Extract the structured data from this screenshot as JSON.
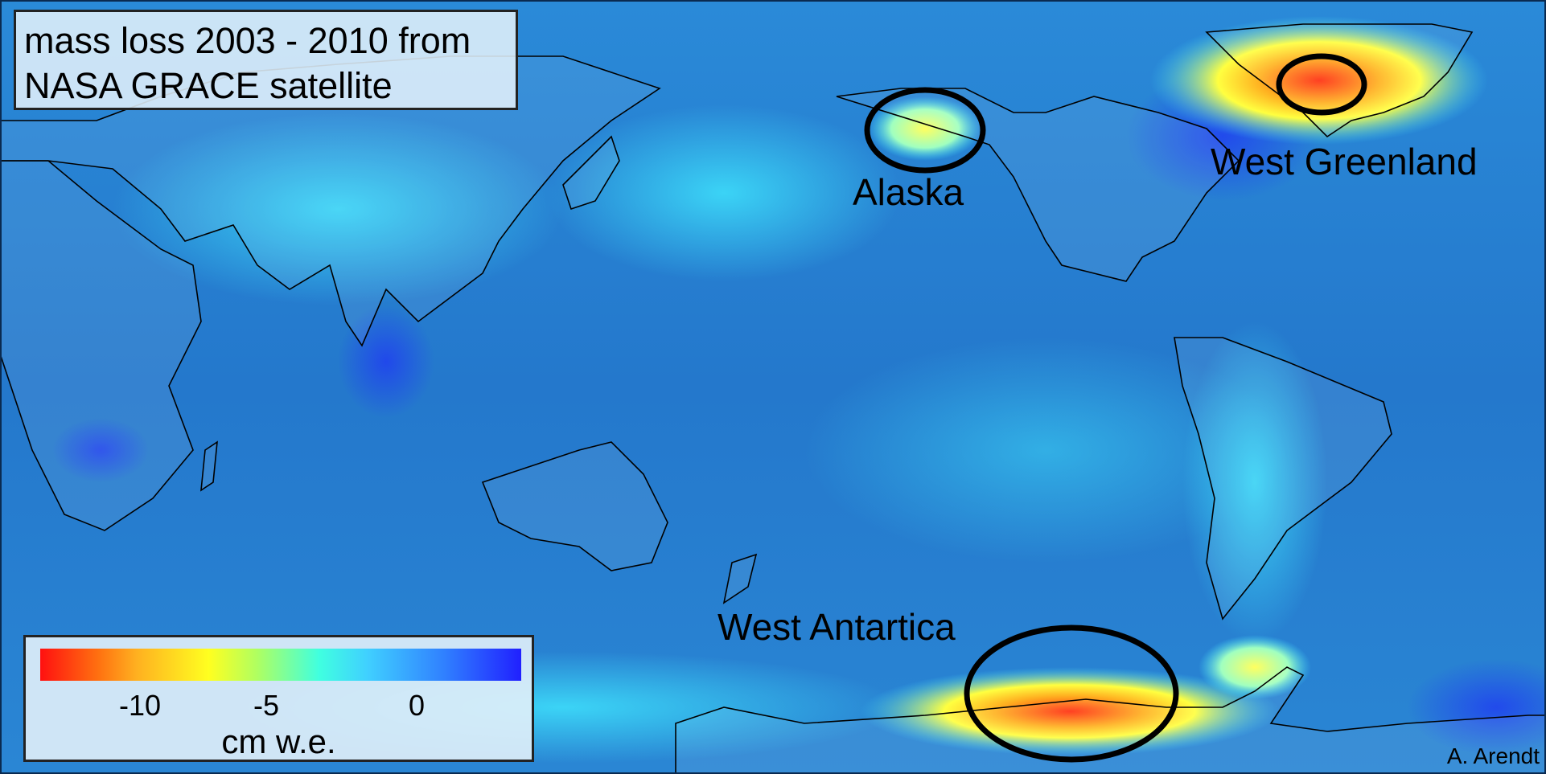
{
  "title": {
    "line1": "mass loss 2003 - 2010 from",
    "line2": "NASA GRACE satellite"
  },
  "regions": {
    "alaska": "Alaska",
    "greenland": "West Greenland",
    "antarctica": "West Antartica"
  },
  "legend": {
    "ticks": [
      "-10",
      "-5",
      "0"
    ],
    "unit": "cm w.e.",
    "colors": [
      "#ff1010",
      "#ffff20",
      "#40ffe0",
      "#2020ff"
    ]
  },
  "credit": "A. Arendt"
}
